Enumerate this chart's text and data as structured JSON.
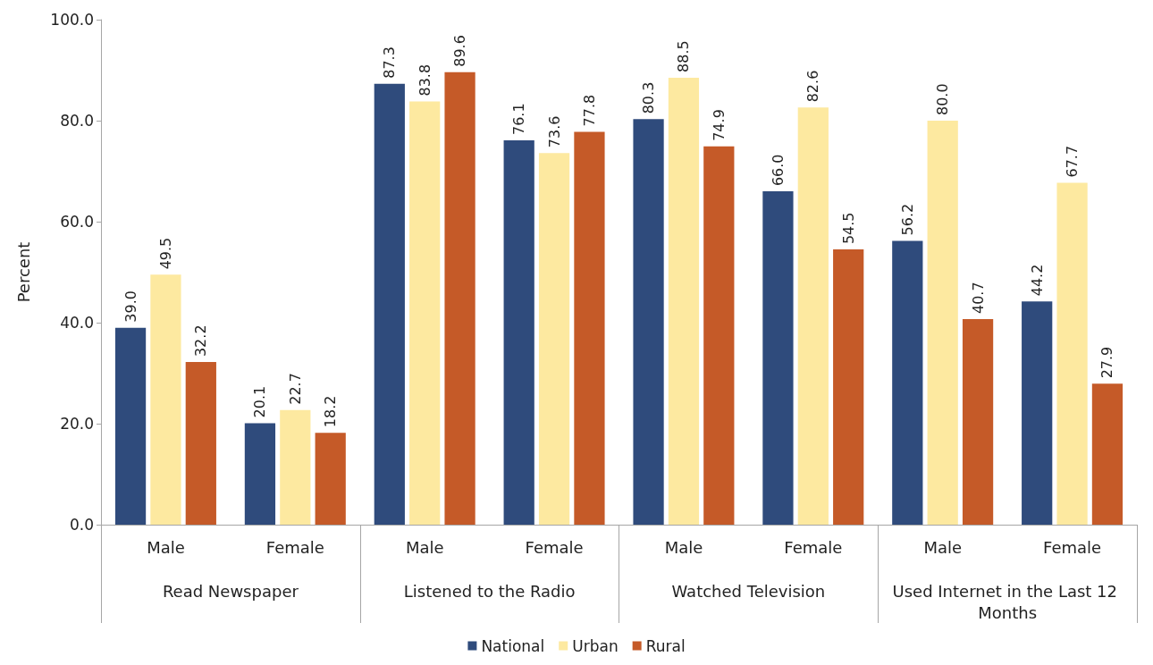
{
  "chart_data": {
    "type": "bar",
    "ylabel": "Percent",
    "categories": [
      "Male",
      "Female",
      "Male",
      "Female",
      "Male",
      "Female",
      "Male",
      "Female"
    ],
    "annotations": [
      "Read Newspaper",
      "Listened to the Radio",
      "Watched Television",
      "Used Internet in the Last 12 Months"
    ],
    "series": [
      {
        "name": "National",
        "color": "#2f4b7c",
        "values": [
          39.0,
          20.1,
          87.3,
          76.1,
          80.3,
          66.0,
          56.2,
          44.2
        ],
        "value_labels": [
          "39.0",
          "20.1",
          "87.3",
          "76.1",
          "80.3",
          "66.0",
          "56.2",
          "44.2"
        ]
      },
      {
        "name": "Urban",
        "color": "#fde9a0",
        "values": [
          49.5,
          22.7,
          83.8,
          73.6,
          88.5,
          82.6,
          80.0,
          67.7
        ],
        "value_labels": [
          "49.5",
          "22.7",
          "83.8",
          "73.6",
          "88.5",
          "82.6",
          "80.0",
          "67.7"
        ]
      },
      {
        "name": "Rural",
        "color": "#c55a28",
        "values": [
          32.2,
          18.2,
          89.6,
          77.8,
          74.9,
          54.5,
          40.7,
          27.9
        ],
        "value_labels": [
          "32.2",
          "18.2",
          "89.6",
          "77.8",
          "74.9",
          "54.5",
          "40.7",
          "27.9"
        ]
      }
    ],
    "ylim": [
      0,
      100
    ],
    "yticks": [
      {
        "value": 0,
        "label": "0.0"
      },
      {
        "value": 20,
        "label": "20.0"
      },
      {
        "value": 40,
        "label": "40.0"
      },
      {
        "value": 60,
        "label": "60.0"
      },
      {
        "value": 80,
        "label": "80.0"
      },
      {
        "value": 100,
        "label": "100.0"
      }
    ],
    "grid": false,
    "legend": "bottom"
  }
}
